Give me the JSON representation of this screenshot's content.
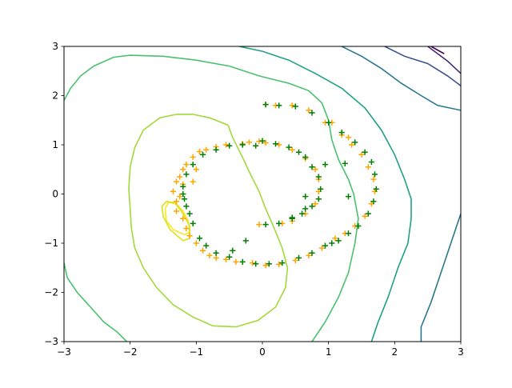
{
  "chart_data": {
    "type": "scatter",
    "title": "",
    "xlabel": "",
    "ylabel": "",
    "xlim": [
      -3,
      3
    ],
    "ylim": [
      -3,
      3
    ],
    "xticks": [
      "−3",
      "−2",
      "−1",
      "0",
      "1",
      "2",
      "3"
    ],
    "yticks": [
      "−3",
      "−2",
      "−1",
      "0",
      "1",
      "2",
      "3"
    ],
    "xtick_values": [
      -3,
      -2,
      -1,
      0,
      1,
      2,
      3
    ],
    "ytick_values": [
      -3,
      -2,
      -1,
      0,
      1,
      2,
      3
    ],
    "grid": false,
    "legend": "none",
    "marker": "+",
    "colors": {
      "orange_series": "#ffa500",
      "green_series": "#008000"
    },
    "contours": [
      {
        "color": "#fde725",
        "points": [
          [
            -1.18,
            -0.83
          ],
          [
            -1.35,
            -0.72
          ],
          [
            -1.45,
            -0.55
          ],
          [
            -1.47,
            -0.3
          ],
          [
            -1.42,
            -0.17
          ],
          [
            -1.3,
            -0.2
          ],
          [
            -1.2,
            -0.35
          ],
          [
            -1.12,
            -0.55
          ],
          [
            -1.1,
            -0.78
          ],
          [
            -1.18,
            -0.83
          ]
        ]
      },
      {
        "color": "#d8e219",
        "points": [
          [
            -1.2,
            -0.95
          ],
          [
            -1.4,
            -0.72
          ],
          [
            -1.5,
            -0.45
          ],
          [
            -1.52,
            -0.25
          ],
          [
            -1.45,
            -0.15
          ],
          [
            -1.32,
            -0.18
          ],
          [
            -1.2,
            -0.4
          ],
          [
            -1.1,
            -0.65
          ],
          [
            -1.1,
            -0.9
          ],
          [
            -1.2,
            -0.95
          ]
        ]
      },
      {
        "color": "#a0da39",
        "points": [
          [
            -0.52,
            1.4
          ],
          [
            -0.8,
            1.55
          ],
          [
            -1.05,
            1.62
          ],
          [
            -1.3,
            1.62
          ],
          [
            -1.55,
            1.55
          ],
          [
            -1.8,
            1.3
          ],
          [
            -1.93,
            0.95
          ],
          [
            -2.0,
            0.55
          ],
          [
            -2.02,
            0.1
          ],
          [
            -2.0,
            -0.3
          ],
          [
            -1.98,
            -0.7
          ],
          [
            -1.93,
            -1.1
          ],
          [
            -1.8,
            -1.5
          ],
          [
            -1.6,
            -1.9
          ],
          [
            -1.35,
            -2.25
          ],
          [
            -1.05,
            -2.5
          ],
          [
            -0.75,
            -2.68
          ],
          [
            -0.4,
            -2.7
          ],
          [
            -0.07,
            -2.57
          ],
          [
            0.2,
            -2.3
          ],
          [
            0.35,
            -1.9
          ],
          [
            0.38,
            -1.5
          ],
          [
            0.3,
            -1.1
          ],
          [
            0.18,
            -0.7
          ],
          [
            0.05,
            -0.3
          ],
          [
            -0.05,
            0.05
          ],
          [
            -0.18,
            0.4
          ],
          [
            -0.32,
            0.8
          ],
          [
            -0.45,
            1.15
          ],
          [
            -0.52,
            1.4
          ]
        ]
      },
      {
        "color": "#4ac16d",
        "points": [
          [
            -3.0,
            1.9
          ],
          [
            -2.9,
            2.15
          ],
          [
            -2.75,
            2.4
          ],
          [
            -2.55,
            2.6
          ],
          [
            -2.25,
            2.78
          ],
          [
            -2.0,
            2.82
          ],
          [
            -1.5,
            2.8
          ],
          [
            -1.0,
            2.72
          ],
          [
            -0.5,
            2.6
          ],
          [
            -0.05,
            2.4
          ],
          [
            0.4,
            2.25
          ],
          [
            0.7,
            2.1
          ],
          [
            0.9,
            1.85
          ],
          [
            1.0,
            1.5
          ],
          [
            1.05,
            1.1
          ],
          [
            1.15,
            0.7
          ],
          [
            1.3,
            0.3
          ],
          [
            1.38,
            0.0
          ],
          [
            1.45,
            -0.5
          ],
          [
            1.4,
            -1.0
          ],
          [
            1.3,
            -1.6
          ],
          [
            1.15,
            -2.1
          ],
          [
            0.95,
            -2.6
          ],
          [
            0.75,
            -3.0
          ]
        ]
      },
      {
        "color": "#4ac16d",
        "points": [
          [
            -3.0,
            -1.4
          ],
          [
            -2.95,
            -1.7
          ],
          [
            -2.8,
            -2.0
          ],
          [
            -2.6,
            -2.3
          ],
          [
            -2.4,
            -2.6
          ],
          [
            -2.2,
            -2.8
          ],
          [
            -2.05,
            -3.0
          ]
        ]
      },
      {
        "color": "#1fa088",
        "points": [
          [
            -0.35,
            3.0
          ],
          [
            0.0,
            2.9
          ],
          [
            0.4,
            2.72
          ],
          [
            0.8,
            2.45
          ],
          [
            1.2,
            2.15
          ],
          [
            1.55,
            1.75
          ],
          [
            1.8,
            1.3
          ],
          [
            2.0,
            0.8
          ],
          [
            2.15,
            0.3
          ],
          [
            2.25,
            -0.1
          ],
          [
            2.25,
            -0.5
          ],
          [
            2.2,
            -1.0
          ],
          [
            2.05,
            -1.5
          ],
          [
            1.9,
            -2.1
          ],
          [
            1.75,
            -2.6
          ],
          [
            1.65,
            -3.0
          ]
        ]
      },
      {
        "color": "#2a788e",
        "points": [
          [
            1.2,
            3.0
          ],
          [
            1.5,
            2.8
          ],
          [
            1.8,
            2.55
          ],
          [
            2.1,
            2.25
          ],
          [
            2.4,
            2.0
          ],
          [
            2.65,
            1.8
          ],
          [
            3.0,
            1.7
          ]
        ]
      },
      {
        "color": "#2a788e",
        "points": [
          [
            3.0,
            -0.4
          ],
          [
            2.85,
            -1.0
          ],
          [
            2.7,
            -1.6
          ],
          [
            2.55,
            -2.2
          ],
          [
            2.4,
            -2.7
          ],
          [
            2.4,
            -3.0
          ]
        ]
      },
      {
        "color": "#3b528b",
        "points": [
          [
            1.85,
            3.0
          ],
          [
            2.15,
            2.8
          ],
          [
            2.5,
            2.65
          ],
          [
            2.8,
            2.4
          ],
          [
            3.0,
            2.2
          ]
        ]
      },
      {
        "color": "#482878",
        "points": [
          [
            2.5,
            3.0
          ],
          [
            2.8,
            2.7
          ],
          [
            3.0,
            2.45
          ]
        ]
      },
      {
        "color": "#440154",
        "points": [
          [
            2.55,
            3.0
          ],
          [
            2.75,
            2.85
          ]
        ]
      }
    ],
    "series": [
      {
        "color": "#ffa500",
        "points": [
          [
            -0.2,
            1.05
          ],
          [
            -0.05,
            1.07
          ],
          [
            0.05,
            1.04
          ],
          [
            -0.3,
            1.02
          ],
          [
            -0.55,
            1.0
          ],
          [
            -0.7,
            0.96
          ],
          [
            -0.85,
            0.9
          ],
          [
            -0.95,
            0.86
          ],
          [
            -1.05,
            0.75
          ],
          [
            -1.15,
            0.6
          ],
          [
            -1.2,
            0.5
          ],
          [
            -1.25,
            0.35
          ],
          [
            -1.2,
            0.2
          ],
          [
            -1.3,
            0.25
          ],
          [
            -1.35,
            0.05
          ],
          [
            -1.25,
            -0.05
          ],
          [
            -1.3,
            -0.15
          ],
          [
            -1.3,
            -0.35
          ],
          [
            -1.2,
            -0.5
          ],
          [
            -1.15,
            -0.7
          ],
          [
            -1.1,
            -0.85
          ],
          [
            -1.0,
            -1.0
          ],
          [
            -0.9,
            -1.15
          ],
          [
            -0.8,
            -1.25
          ],
          [
            -0.7,
            -1.3
          ],
          [
            -0.55,
            -1.33
          ],
          [
            -0.4,
            -1.38
          ],
          [
            -0.15,
            -1.4
          ],
          [
            0.05,
            -1.45
          ],
          [
            0.25,
            -1.43
          ],
          [
            0.5,
            -1.35
          ],
          [
            0.7,
            -1.25
          ],
          [
            0.9,
            -1.1
          ],
          [
            1.1,
            -0.9
          ],
          [
            1.25,
            -0.8
          ],
          [
            1.4,
            -0.65
          ],
          [
            1.55,
            -0.45
          ],
          [
            1.65,
            -0.2
          ],
          [
            1.7,
            0.05
          ],
          [
            1.68,
            0.3
          ],
          [
            1.6,
            0.55
          ],
          [
            1.5,
            0.8
          ],
          [
            1.35,
            1.0
          ],
          [
            1.2,
            1.2
          ],
          [
            0.95,
            1.45
          ],
          [
            0.7,
            1.7
          ],
          [
            0.45,
            1.8
          ],
          [
            0.2,
            1.8
          ],
          [
            0.05,
            1.82
          ],
          [
            1.05,
            1.45
          ],
          [
            1.3,
            1.15
          ],
          [
            0.3,
            -0.6
          ],
          [
            0.45,
            -0.55
          ],
          [
            0.65,
            -0.4
          ],
          [
            0.8,
            -0.2
          ],
          [
            0.85,
            0.05
          ],
          [
            0.85,
            0.3
          ],
          [
            0.8,
            0.5
          ],
          [
            0.65,
            0.72
          ],
          [
            0.45,
            0.9
          ],
          [
            0.25,
            1.0
          ],
          [
            -0.05,
            -0.62
          ],
          [
            -1.0,
            0.5
          ],
          [
            -1.05,
            0.25
          ]
        ]
      },
      {
        "color": "#008000",
        "points": [
          [
            0.0,
            1.08
          ],
          [
            0.2,
            1.02
          ],
          [
            0.4,
            0.95
          ],
          [
            0.55,
            0.85
          ],
          [
            0.65,
            0.75
          ],
          [
            0.75,
            0.55
          ],
          [
            0.85,
            0.35
          ],
          [
            0.88,
            0.1
          ],
          [
            0.85,
            -0.1
          ],
          [
            0.75,
            -0.25
          ],
          [
            0.6,
            -0.4
          ],
          [
            0.45,
            -0.48
          ],
          [
            0.25,
            -0.6
          ],
          [
            0.05,
            -0.62
          ],
          [
            -0.1,
            0.98
          ],
          [
            -0.3,
            1.0
          ],
          [
            -0.5,
            0.98
          ],
          [
            -0.7,
            0.9
          ],
          [
            -0.9,
            0.8
          ],
          [
            -1.05,
            0.6
          ],
          [
            -1.15,
            0.4
          ],
          [
            -1.2,
            0.15
          ],
          [
            -1.18,
            -0.1
          ],
          [
            -1.1,
            -0.4
          ],
          [
            -1.05,
            -0.6
          ],
          [
            -0.95,
            -0.9
          ],
          [
            -0.85,
            -1.05
          ],
          [
            -0.7,
            -1.2
          ],
          [
            -0.5,
            -1.28
          ],
          [
            -0.3,
            -1.38
          ],
          [
            -0.1,
            -1.42
          ],
          [
            0.1,
            -1.42
          ],
          [
            0.3,
            -1.4
          ],
          [
            0.55,
            -1.3
          ],
          [
            0.75,
            -1.2
          ],
          [
            0.95,
            -1.05
          ],
          [
            1.15,
            -0.95
          ],
          [
            1.3,
            -0.8
          ],
          [
            1.45,
            -0.65
          ],
          [
            1.6,
            -0.4
          ],
          [
            1.68,
            -0.15
          ],
          [
            1.72,
            0.1
          ],
          [
            1.7,
            0.4
          ],
          [
            1.65,
            0.65
          ],
          [
            1.55,
            0.85
          ],
          [
            1.4,
            1.05
          ],
          [
            1.2,
            1.25
          ],
          [
            1.0,
            1.45
          ],
          [
            0.75,
            1.65
          ],
          [
            0.5,
            1.78
          ],
          [
            0.25,
            1.8
          ],
          [
            0.05,
            1.82
          ],
          [
            1.25,
            0.62
          ],
          [
            1.3,
            -0.05
          ],
          [
            0.95,
            0.6
          ],
          [
            0.65,
            -0.3
          ],
          [
            0.45,
            -0.5
          ],
          [
            -0.25,
            -0.95
          ],
          [
            -0.45,
            -1.15
          ],
          [
            0.65,
            -0.05
          ],
          [
            1.05,
            -1.0
          ],
          [
            -1.15,
            -0.25
          ],
          [
            -1.2,
            0.0
          ]
        ]
      }
    ]
  }
}
